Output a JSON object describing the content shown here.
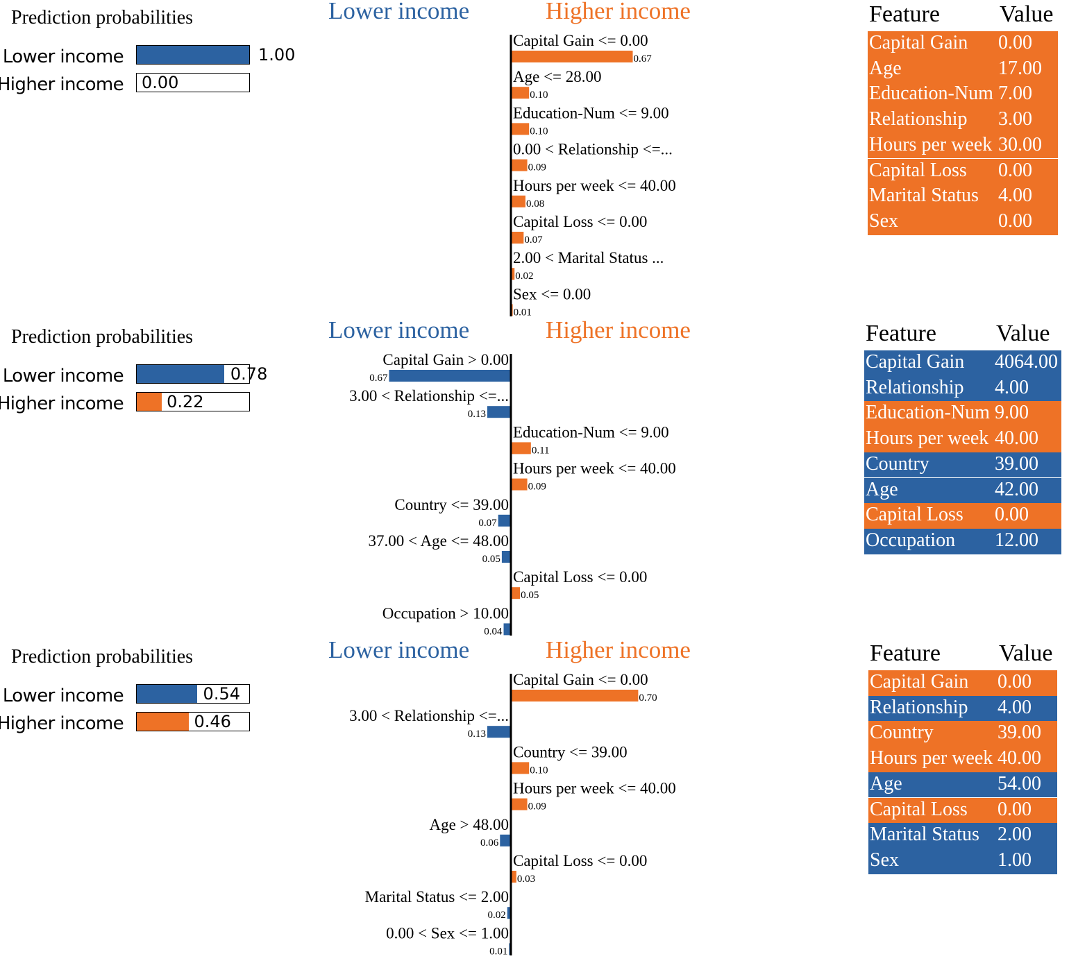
{
  "colors": {
    "lower": "#2c62a1",
    "higher": "#ee7226"
  },
  "chart_data": [
    {
      "type": "bar",
      "prediction_title": "Prediction probabilities",
      "probabilities": [
        {
          "label": "Lower income",
          "value": 1.0,
          "value_text": "1.00"
        },
        {
          "label": "Higher income",
          "value": 0.0,
          "value_text": "0.00"
        }
      ],
      "lower_header": "Lower income",
      "higher_header": "Higher income",
      "explanation": [
        {
          "feature": "Capital Gain <= 0.00",
          "weight": 0.67,
          "weight_text": "0.67",
          "side": "higher"
        },
        {
          "feature": "Age <= 28.00",
          "weight": 0.1,
          "weight_text": "0.10",
          "side": "higher"
        },
        {
          "feature": "Education-Num <= 9.00",
          "weight": 0.1,
          "weight_text": "0.10",
          "side": "higher"
        },
        {
          "feature": "0.00 < Relationship <=...",
          "weight": 0.09,
          "weight_text": "0.09",
          "side": "higher"
        },
        {
          "feature": "Hours per week <= 40.00",
          "weight": 0.08,
          "weight_text": "0.08",
          "side": "higher"
        },
        {
          "feature": "Capital Loss <= 0.00",
          "weight": 0.07,
          "weight_text": "0.07",
          "side": "higher"
        },
        {
          "feature": "2.00 < Marital Status ...",
          "weight": 0.02,
          "weight_text": "0.02",
          "side": "higher"
        },
        {
          "feature": "Sex <= 0.00",
          "weight": 0.01,
          "weight_text": "0.01",
          "side": "higher"
        }
      ],
      "table": {
        "headers": [
          "Feature",
          "Value"
        ],
        "rows": [
          {
            "feature": "Capital Gain",
            "value": "0.00",
            "side": "higher"
          },
          {
            "feature": "Age",
            "value": "17.00",
            "side": "higher"
          },
          {
            "feature": "Education-Num",
            "value": "7.00",
            "side": "higher"
          },
          {
            "feature": "Relationship",
            "value": "3.00",
            "side": "higher"
          },
          {
            "feature": "Hours per week",
            "value": "30.00",
            "side": "higher"
          },
          {
            "feature": "Capital Loss",
            "value": "0.00",
            "side": "higher"
          },
          {
            "feature": "Marital Status",
            "value": "4.00",
            "side": "higher"
          },
          {
            "feature": "Sex",
            "value": "0.00",
            "side": "higher"
          }
        ]
      }
    },
    {
      "type": "bar",
      "prediction_title": "Prediction probabilities",
      "probabilities": [
        {
          "label": "Lower income",
          "value": 0.78,
          "value_text": "0.78"
        },
        {
          "label": "Higher income",
          "value": 0.22,
          "value_text": "0.22"
        }
      ],
      "lower_header": "Lower income",
      "higher_header": "Higher income",
      "explanation": [
        {
          "feature": "Capital Gain > 0.00",
          "weight": 0.67,
          "weight_text": "0.67",
          "side": "lower"
        },
        {
          "feature": "3.00 < Relationship <=...",
          "weight": 0.13,
          "weight_text": "0.13",
          "side": "lower"
        },
        {
          "feature": "Education-Num <= 9.00",
          "weight": 0.11,
          "weight_text": "0.11",
          "side": "higher"
        },
        {
          "feature": "Hours per week <= 40.00",
          "weight": 0.09,
          "weight_text": "0.09",
          "side": "higher"
        },
        {
          "feature": "Country <= 39.00",
          "weight": 0.07,
          "weight_text": "0.07",
          "side": "lower"
        },
        {
          "feature": "37.00 < Age <= 48.00",
          "weight": 0.05,
          "weight_text": "0.05",
          "side": "lower"
        },
        {
          "feature": "Capital Loss <= 0.00",
          "weight": 0.05,
          "weight_text": "0.05",
          "side": "higher"
        },
        {
          "feature": "Occupation > 10.00",
          "weight": 0.04,
          "weight_text": "0.04",
          "side": "lower"
        }
      ],
      "table": {
        "headers": [
          "Feature",
          "Value"
        ],
        "rows": [
          {
            "feature": "Capital Gain",
            "value": "4064.00",
            "side": "lower"
          },
          {
            "feature": "Relationship",
            "value": "4.00",
            "side": "lower"
          },
          {
            "feature": "Education-Num",
            "value": "9.00",
            "side": "higher"
          },
          {
            "feature": "Hours per week",
            "value": "40.00",
            "side": "higher"
          },
          {
            "feature": "Country",
            "value": "39.00",
            "side": "lower"
          },
          {
            "feature": "Age",
            "value": "42.00",
            "side": "lower"
          },
          {
            "feature": "Capital Loss",
            "value": "0.00",
            "side": "higher"
          },
          {
            "feature": "Occupation",
            "value": "12.00",
            "side": "lower"
          }
        ]
      }
    },
    {
      "type": "bar",
      "prediction_title": "Prediction probabilities",
      "probabilities": [
        {
          "label": "Lower income",
          "value": 0.54,
          "value_text": "0.54"
        },
        {
          "label": "Higher income",
          "value": 0.46,
          "value_text": "0.46"
        }
      ],
      "lower_header": "Lower income",
      "higher_header": "Higher income",
      "explanation": [
        {
          "feature": "Capital Gain <= 0.00",
          "weight": 0.7,
          "weight_text": "0.70",
          "side": "higher"
        },
        {
          "feature": "3.00 < Relationship <=...",
          "weight": 0.13,
          "weight_text": "0.13",
          "side": "lower"
        },
        {
          "feature": "Country <= 39.00",
          "weight": 0.1,
          "weight_text": "0.10",
          "side": "higher"
        },
        {
          "feature": "Hours per week <= 40.00",
          "weight": 0.09,
          "weight_text": "0.09",
          "side": "higher"
        },
        {
          "feature": "Age > 48.00",
          "weight": 0.06,
          "weight_text": "0.06",
          "side": "lower"
        },
        {
          "feature": "Capital Loss <= 0.00",
          "weight": 0.03,
          "weight_text": "0.03",
          "side": "higher"
        },
        {
          "feature": "Marital Status <= 2.00",
          "weight": 0.02,
          "weight_text": "0.02",
          "side": "lower"
        },
        {
          "feature": "0.00 < Sex <= 1.00",
          "weight": 0.01,
          "weight_text": "0.01",
          "side": "lower"
        }
      ],
      "table": {
        "headers": [
          "Feature",
          "Value"
        ],
        "rows": [
          {
            "feature": "Capital Gain",
            "value": "0.00",
            "side": "higher"
          },
          {
            "feature": "Relationship",
            "value": "4.00",
            "side": "lower"
          },
          {
            "feature": "Country",
            "value": "39.00",
            "side": "higher"
          },
          {
            "feature": "Hours per week",
            "value": "40.00",
            "side": "higher"
          },
          {
            "feature": "Age",
            "value": "54.00",
            "side": "lower"
          },
          {
            "feature": "Capital Loss",
            "value": "0.00",
            "side": "higher"
          },
          {
            "feature": "Marital Status",
            "value": "2.00",
            "side": "lower"
          },
          {
            "feature": "Sex",
            "value": "1.00",
            "side": "lower"
          }
        ]
      }
    }
  ]
}
